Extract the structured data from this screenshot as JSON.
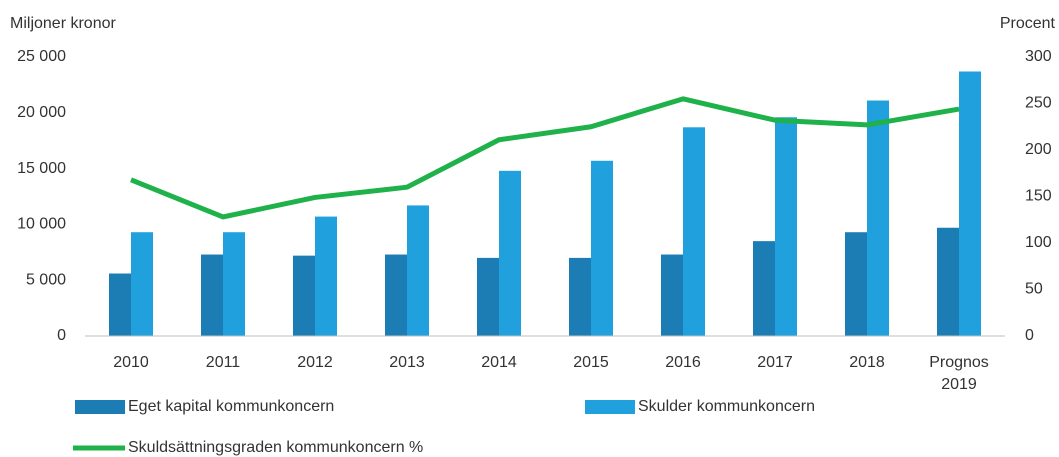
{
  "chart_data": {
    "type": "bar",
    "y_label": "Miljoner kronor",
    "y2_label": "Procent",
    "categories": [
      "2010",
      "2011",
      "2012",
      "2013",
      "2014",
      "2015",
      "2016",
      "2017",
      "2018",
      "Prognos 2019"
    ],
    "series": [
      {
        "name": "Eget kapital kommunkoncern",
        "color": "#1b7db4",
        "type": "bar",
        "values": [
          5600,
          7300,
          7200,
          7300,
          7000,
          7000,
          7300,
          8500,
          9300,
          9700
        ]
      },
      {
        "name": "Skulder kommunkoncern",
        "color": "#20a0dd",
        "type": "bar",
        "values": [
          9300,
          9300,
          10700,
          11700,
          14800,
          15700,
          18700,
          19600,
          21100,
          23700
        ]
      },
      {
        "name": "Skuldsättningsgraden kommunkoncern %",
        "color": "#1fb14a",
        "type": "line",
        "axis": "y2",
        "values": [
          168,
          128,
          149,
          160,
          211,
          225,
          255,
          232,
          227,
          244
        ]
      }
    ],
    "ylim": [
      0,
      25000
    ],
    "yticks": [
      0,
      {
        "value": 5000,
        "label": "5 000"
      },
      {
        "value": 10000,
        "label": "10 000"
      },
      {
        "value": 15000,
        "label": "15 000"
      },
      {
        "value": 20000,
        "label": "20 000"
      },
      {
        "value": 25000,
        "label": "25 000"
      }
    ],
    "y2lim": [
      0,
      300
    ],
    "y2ticks": [
      0,
      50,
      100,
      150,
      200,
      250,
      300
    ],
    "grid": false
  }
}
